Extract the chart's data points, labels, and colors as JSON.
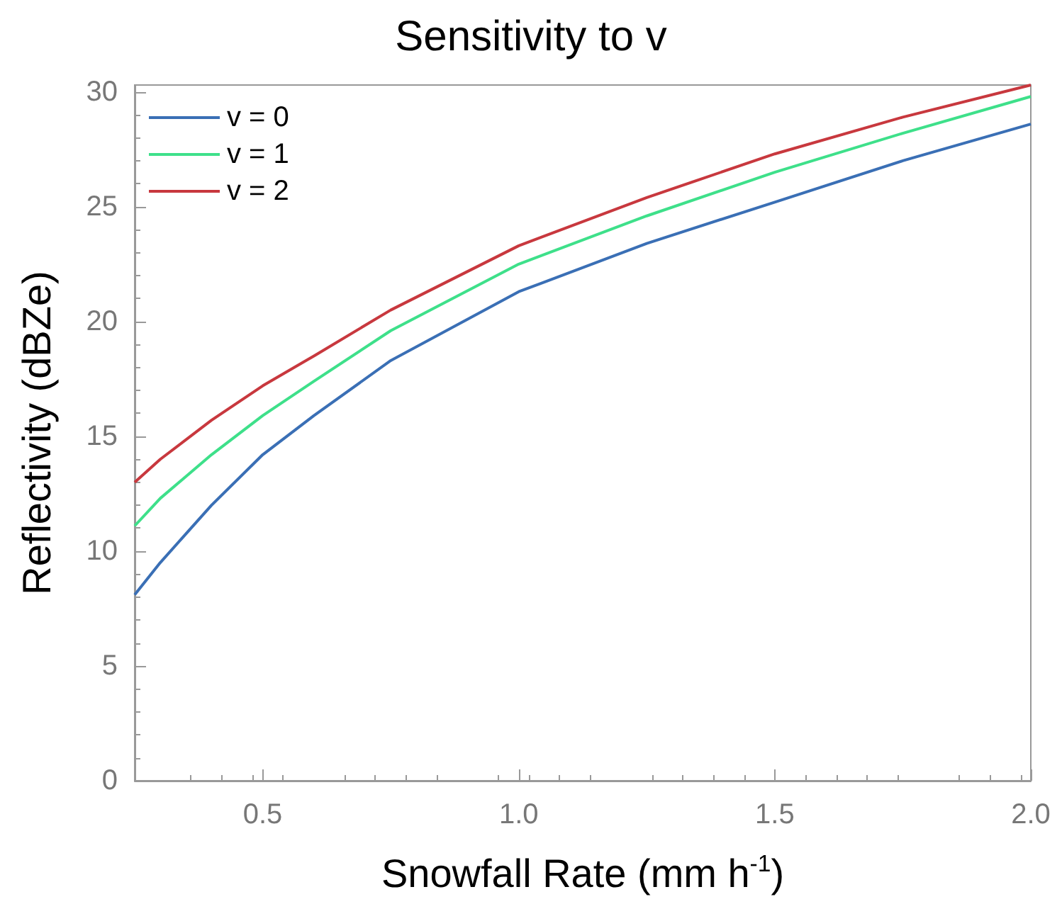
{
  "chart_data": {
    "type": "line",
    "title": "Sensitivity to v",
    "xlabel": "Snowfall Rate (mm h$^{-1}$)",
    "ylabel": "Reflectivity (dBZe)",
    "x": [
      0.25,
      0.3,
      0.4,
      0.5,
      0.6,
      0.75,
      1.0,
      1.25,
      1.5,
      1.75,
      2.0
    ],
    "series": [
      {
        "name": "v = 0",
        "color": "#3a6fb5",
        "values": [
          8.1,
          9.5,
          12.0,
          14.2,
          15.9,
          18.3,
          21.3,
          23.4,
          25.2,
          27.0,
          28.6
        ]
      },
      {
        "name": "v = 1",
        "color": "#3ee08a",
        "values": [
          11.1,
          12.3,
          14.2,
          15.9,
          17.4,
          19.6,
          22.5,
          24.6,
          26.5,
          28.2,
          29.8
        ]
      },
      {
        "name": "v = 2",
        "color": "#c8383e",
        "values": [
          13.0,
          14.0,
          15.7,
          17.2,
          18.5,
          20.5,
          23.3,
          25.4,
          27.3,
          28.9,
          30.3
        ]
      }
    ],
    "xlim": [
      0.25,
      2.0
    ],
    "xticks": [
      0.5,
      {
        "value": 1,
        "label": "1.0"
      },
      1.5,
      {
        "value": 2,
        "label": "2.0"
      }
    ],
    "ylim": [
      0,
      30.3
    ],
    "yticks": [
      0,
      5,
      10,
      15,
      20,
      25,
      30
    ],
    "grid": false,
    "legend": "top left",
    "marker": "none",
    "line_style": "solid"
  }
}
